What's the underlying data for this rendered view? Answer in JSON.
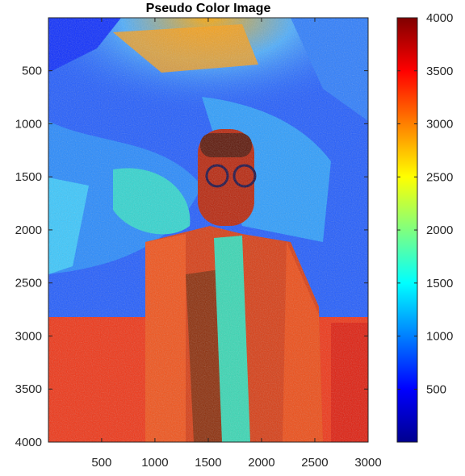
{
  "chart_data": [
    {
      "type": "heatmap",
      "title": "Pseudo Color Image",
      "xlabel": "",
      "ylabel": "",
      "xlim": [
        1,
        3000
      ],
      "ylim": [
        4000,
        1
      ],
      "xticks": [
        500,
        1000,
        1500,
        2000,
        2500,
        3000
      ],
      "yticks": [
        500,
        1000,
        1500,
        2000,
        2500,
        3000,
        3500,
        4000
      ],
      "colormap": "jet",
      "grid": false
    },
    {
      "type": "colorbar",
      "clim": [
        1,
        4000
      ],
      "ticks": [
        500,
        1000,
        1500,
        2000,
        2500,
        3000,
        3500,
        4000
      ]
    }
  ],
  "colors": {
    "axis": "#262626",
    "jet_stops": [
      "#00008f",
      "#0000ff",
      "#00ffff",
      "#ffff00",
      "#ff0000",
      "#800000"
    ]
  }
}
